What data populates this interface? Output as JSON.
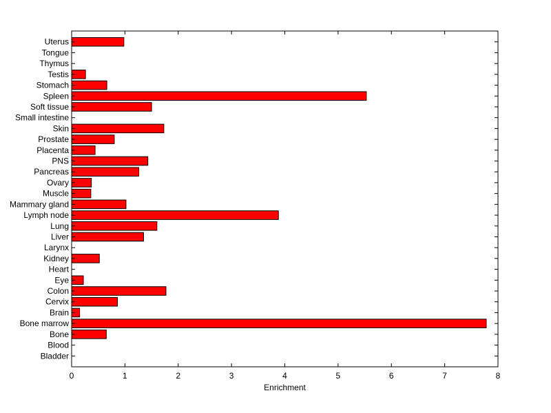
{
  "chart_data": {
    "type": "bar",
    "orientation": "horizontal",
    "title": "",
    "xlabel": "Enrichment",
    "ylabel": "",
    "xlim": [
      0,
      8
    ],
    "xticks": [
      0,
      1,
      2,
      3,
      4,
      5,
      6,
      7,
      8
    ],
    "grid": false,
    "bar_color": "#ff0000",
    "bar_edge_color": "#000000",
    "categories": [
      "Bladder",
      "Blood",
      "Bone",
      "Bone marrow",
      "Brain",
      "Cervix",
      "Colon",
      "Eye",
      "Heart",
      "Kidney",
      "Larynx",
      "Liver",
      "Lung",
      "Lymph node",
      "Mammary gland",
      "Muscle",
      "Ovary",
      "Pancreas",
      "PNS",
      "Placenta",
      "Prostate",
      "Skin",
      "Small intestine",
      "Soft tissue",
      "Spleen",
      "Stomach",
      "Testis",
      "Thymus",
      "Tongue",
      "Uterus"
    ],
    "values": [
      0,
      0,
      0.65,
      7.78,
      0.15,
      0.86,
      1.77,
      0.22,
      0,
      0.52,
      0,
      1.35,
      1.6,
      3.88,
      1.02,
      0.36,
      0.37,
      1.26,
      1.43,
      0.44,
      0.8,
      1.73,
      0,
      1.5,
      5.53,
      0.66,
      0.26,
      0,
      0,
      0.98
    ]
  }
}
